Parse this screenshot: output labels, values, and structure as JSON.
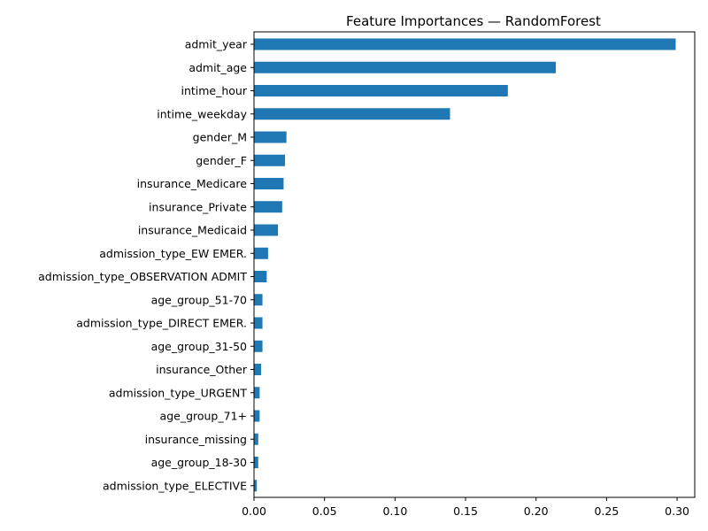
{
  "chart_data": {
    "type": "bar",
    "orientation": "horizontal",
    "title": "Feature Importances — RandomForest",
    "xlabel": "",
    "ylabel": "",
    "xlim": [
      0,
      0.3125
    ],
    "xticks": [
      0.0,
      0.05,
      0.1,
      0.15,
      0.2,
      0.25,
      0.3
    ],
    "xtick_labels": [
      "0.00",
      "0.05",
      "0.10",
      "0.15",
      "0.20",
      "0.25",
      "0.30"
    ],
    "grid": false,
    "bar_color": "#1f77b4",
    "categories": [
      "admit_year",
      "admit_age",
      "intime_hour",
      "intime_weekday",
      "gender_M",
      "gender_F",
      "insurance_Medicare",
      "insurance_Private",
      "insurance_Medicaid",
      "admission_type_EW EMER.",
      "admission_type_OBSERVATION ADMIT",
      "age_group_51-70",
      "admission_type_DIRECT EMER.",
      "age_group_31-50",
      "insurance_Other",
      "admission_type_URGENT",
      "age_group_71+",
      "insurance_missing",
      "age_group_18-30",
      "admission_type_ELECTIVE"
    ],
    "values": [
      0.299,
      0.214,
      0.18,
      0.139,
      0.023,
      0.022,
      0.021,
      0.02,
      0.017,
      0.01,
      0.009,
      0.006,
      0.006,
      0.006,
      0.005,
      0.004,
      0.004,
      0.003,
      0.003,
      0.002
    ]
  }
}
